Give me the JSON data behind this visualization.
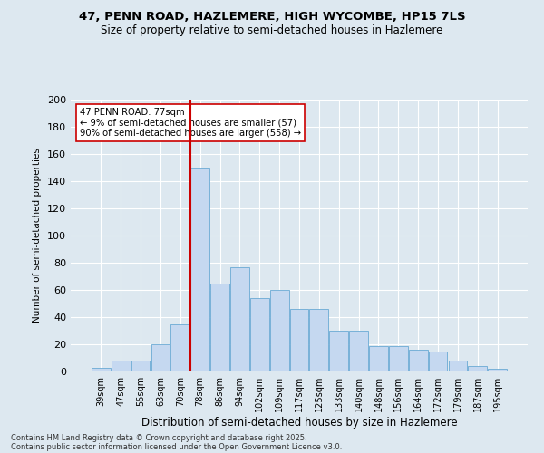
{
  "title1": "47, PENN ROAD, HAZLEMERE, HIGH WYCOMBE, HP15 7LS",
  "title2": "Size of property relative to semi-detached houses in Hazlemere",
  "xlabel": "Distribution of semi-detached houses by size in Hazlemere",
  "ylabel": "Number of semi-detached properties",
  "bin_labels": [
    "39sqm",
    "47sqm",
    "55sqm",
    "63sqm",
    "70sqm",
    "78sqm",
    "86sqm",
    "94sqm",
    "102sqm",
    "109sqm",
    "117sqm",
    "125sqm",
    "133sqm",
    "140sqm",
    "148sqm",
    "156sqm",
    "164sqm",
    "172sqm",
    "179sqm",
    "187sqm",
    "195sqm"
  ],
  "bar_values": [
    3,
    8,
    8,
    20,
    35,
    150,
    65,
    77,
    54,
    60,
    46,
    46,
    30,
    30,
    19,
    19,
    16,
    15,
    8,
    4,
    2
  ],
  "bar_color": "#c5d8f0",
  "bar_edge_color": "#6aaad4",
  "vline_color": "#cc0000",
  "annotation_text": "47 PENN ROAD: 77sqm\n← 9% of semi-detached houses are smaller (57)\n90% of semi-detached houses are larger (558) →",
  "annotation_box_color": "white",
  "annotation_box_edge": "#cc0000",
  "background_color": "#dde8f0",
  "footer_line1": "Contains HM Land Registry data © Crown copyright and database right 2025.",
  "footer_line2": "Contains public sector information licensed under the Open Government Licence v3.0.",
  "ylim": [
    0,
    200
  ],
  "yticks": [
    0,
    20,
    40,
    60,
    80,
    100,
    120,
    140,
    160,
    180,
    200
  ]
}
